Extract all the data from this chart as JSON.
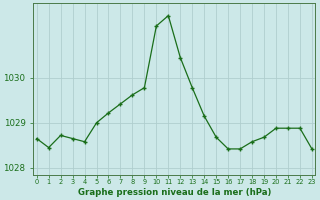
{
  "x": [
    0,
    1,
    2,
    3,
    4,
    5,
    6,
    7,
    8,
    9,
    10,
    11,
    12,
    13,
    14,
    15,
    16,
    17,
    18,
    19,
    20,
    21,
    22,
    23
  ],
  "y": [
    1028.65,
    1028.45,
    1028.72,
    1028.65,
    1028.58,
    1029.0,
    1029.22,
    1029.42,
    1029.62,
    1029.78,
    1031.15,
    1031.38,
    1030.45,
    1029.78,
    1029.15,
    1028.68,
    1028.42,
    1028.42,
    1028.58,
    1028.68,
    1028.88,
    1028.88,
    1028.88,
    1028.42
  ],
  "line_color": "#1a6e1a",
  "marker_color": "#1a6e1a",
  "bg_color": "#cce8e8",
  "grid_color": "#b0cece",
  "axis_label_color": "#1a6e1a",
  "tick_color": "#1a6e1a",
  "border_color": "#4a7a4a",
  "title": "Graphe pression niveau de la mer (hPa)",
  "ylim": [
    1027.85,
    1031.65
  ],
  "yticks": [
    1028,
    1029,
    1030
  ],
  "xlim": [
    -0.3,
    23.3
  ],
  "xtick_labels": [
    "0",
    "1",
    "2",
    "3",
    "4",
    "5",
    "6",
    "7",
    "8",
    "9",
    "10",
    "11",
    "12",
    "13",
    "14",
    "15",
    "16",
    "17",
    "18",
    "19",
    "20",
    "21",
    "22",
    "23"
  ]
}
